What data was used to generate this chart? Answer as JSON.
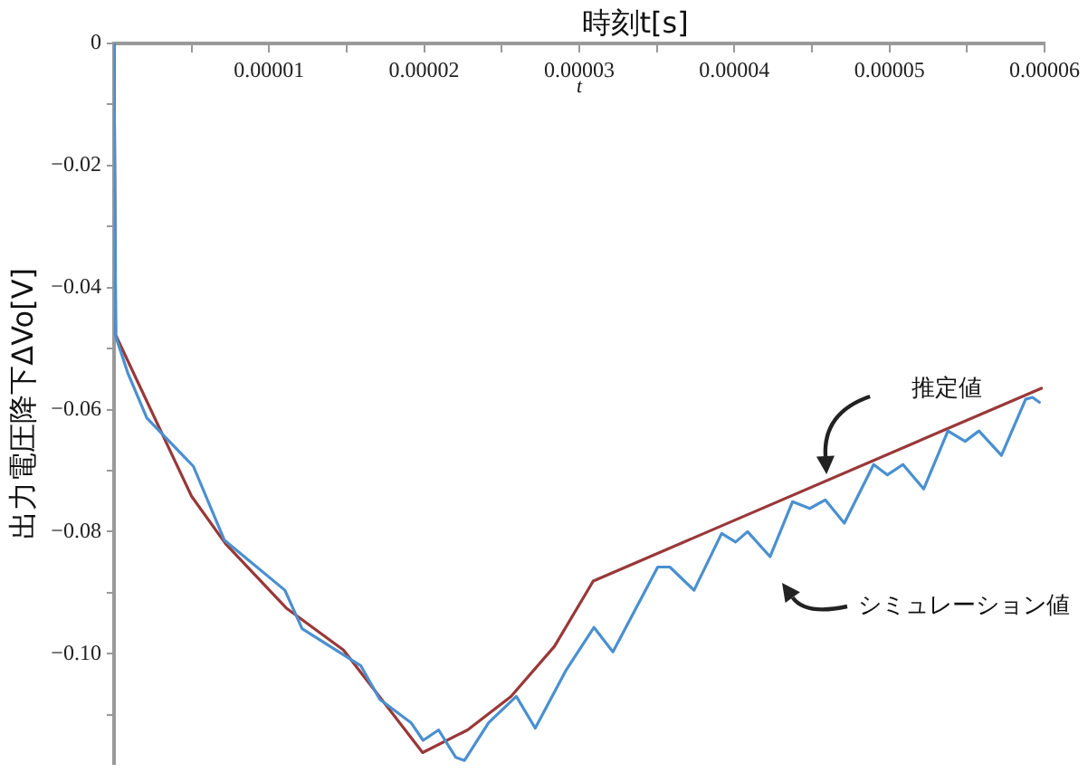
{
  "chart_data": {
    "type": "line",
    "xlabel": "時刻t[s]",
    "ylabel": "出力電圧降下ΔVo[V]",
    "xlim": [
      0,
      6e-05
    ],
    "ylim": [
      -0.118,
      0
    ],
    "xticks": [
      {
        "value": 0,
        "label": null
      },
      {
        "value": 5e-06,
        "label": null
      },
      {
        "value": 1e-05,
        "label": "0.00001"
      },
      {
        "value": 1.5e-05,
        "label": null
      },
      {
        "value": 2e-05,
        "label": "0.00002"
      },
      {
        "value": 2.5e-05,
        "label": null
      },
      {
        "value": 3e-05,
        "label": "0.00003"
      },
      {
        "value": 3.5e-05,
        "label": null
      },
      {
        "value": 4e-05,
        "label": "0.00004"
      },
      {
        "value": 4.5e-05,
        "label": null
      },
      {
        "value": 5e-05,
        "label": "0.00005"
      },
      {
        "value": 5.5e-05,
        "label": null
      },
      {
        "value": 6e-05,
        "label": "0.00006"
      }
    ],
    "yticks": [
      0,
      {
        "value": -0.01,
        "label": null
      },
      {
        "value": -0.02,
        "label": "−0.02"
      },
      {
        "value": -0.03,
        "label": null
      },
      {
        "value": -0.04,
        "label": "−0.04"
      },
      {
        "value": -0.05,
        "label": null
      },
      {
        "value": -0.06,
        "label": "−0.06"
      },
      {
        "value": -0.07,
        "label": null
      },
      {
        "value": -0.08,
        "label": "−0.08"
      },
      {
        "value": -0.09,
        "label": null
      },
      {
        "value": -0.1,
        "label": "−0.10"
      },
      {
        "value": -0.11,
        "label": null
      }
    ],
    "grid": false,
    "legend": false,
    "marker": "none",
    "line_style": "solid",
    "series": [
      {
        "color": "#4a90d0",
        "x": [
          0,
          1.1e-07,
          8.9e-07,
          2.12e-06,
          5.12e-06,
          7.12e-06,
          1.102e-05,
          1.213e-05,
          1.592e-05,
          1.714e-05,
          1.915e-05,
          1.993e-05,
          2.093e-05,
          2.204e-05,
          2.26e-05,
          2.416e-05,
          2.594e-05,
          2.716e-05,
          2.917e-05,
          3.095e-05,
          3.217e-05,
          3.506e-05,
          3.584e-05,
          3.74e-05,
          3.918e-05,
          4.008e-05,
          4.085e-05,
          4.23e-05,
          4.375e-05,
          4.486e-05,
          4.586e-05,
          4.709e-05,
          4.898e-05,
          4.987e-05,
          5.087e-05,
          5.221e-05,
          5.377e-05,
          5.488e-05,
          5.577e-05,
          5.722e-05,
          5.878e-05,
          5.922e-05,
          5.967e-05
        ],
        "values": [
          0,
          -0.048,
          -0.054,
          -0.0614,
          -0.0693,
          -0.0814,
          -0.0896,
          -0.0959,
          -0.102,
          -0.1075,
          -0.1113,
          -0.1142,
          -0.1125,
          -0.117,
          -0.1175,
          -0.1113,
          -0.107,
          -0.1122,
          -0.1026,
          -0.0957,
          -0.0997,
          -0.0858,
          -0.0858,
          -0.0896,
          -0.0803,
          -0.0817,
          -0.08,
          -0.0841,
          -0.0751,
          -0.0762,
          -0.0748,
          -0.0786,
          -0.069,
          -0.0707,
          -0.069,
          -0.073,
          -0.0635,
          -0.0652,
          -0.0635,
          -0.0675,
          -0.0583,
          -0.058,
          -0.0588
        ]
      },
      {
        "color": "#993838",
        "x": [
          0,
          1.1e-07,
          5e-06,
          7.2e-06,
          1.11e-05,
          1.48e-05,
          1.99e-05,
          2.28e-05,
          2.56e-05,
          2.84e-05,
          3.09e-05,
          5.98e-05
        ],
        "values": [
          0,
          -0.0478,
          -0.0742,
          -0.082,
          -0.0925,
          -0.0994,
          -0.1162,
          -0.1125,
          -0.107,
          -0.0988,
          -0.0881,
          -0.0565
        ]
      }
    ],
    "annotations": [
      "t",
      "推定値",
      "シミュレーション値"
    ]
  }
}
